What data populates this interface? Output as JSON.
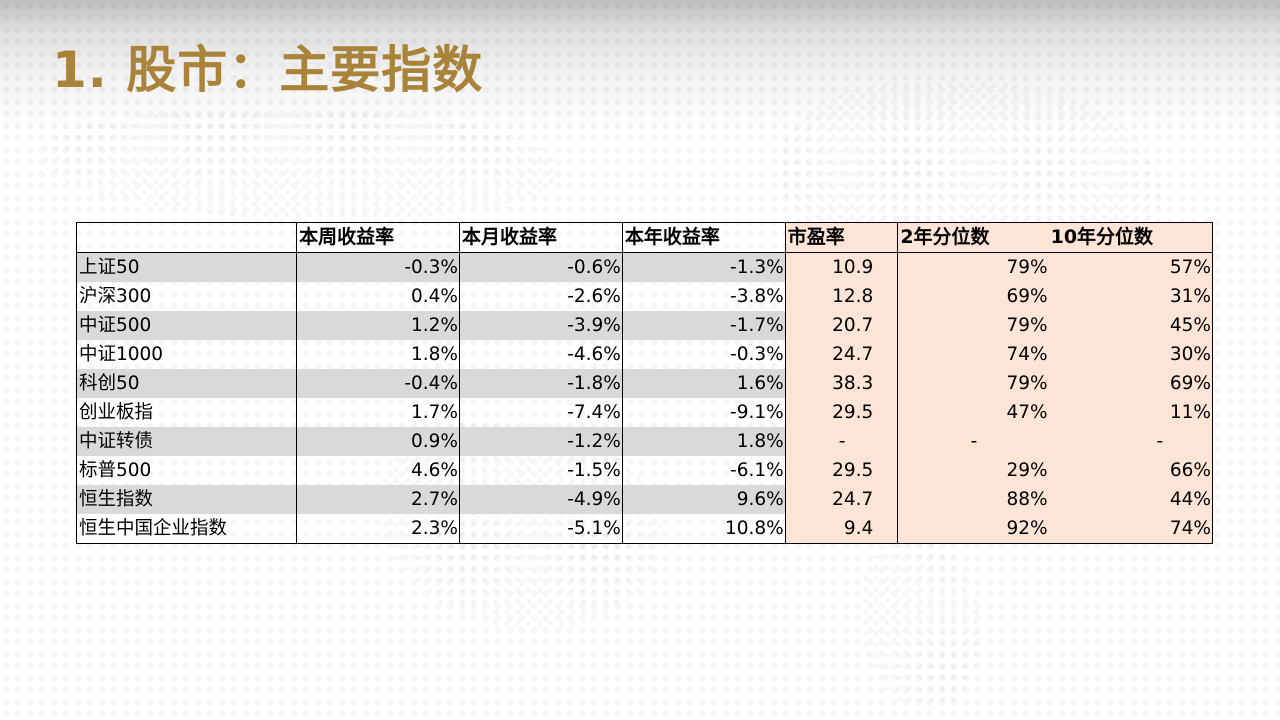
{
  "title": "1. 股市：主要指数",
  "table": {
    "headers": [
      "",
      "本周收益率",
      "本月收益率",
      "本年收益率",
      "市盈率",
      "2年分位数",
      "10年分位数"
    ],
    "rows": [
      {
        "name": "上证50",
        "week": "-0.3%",
        "month": "-0.6%",
        "ytd": "-1.3%",
        "pe": "10.9",
        "p2y": "79%",
        "p10y": "57%"
      },
      {
        "name": "沪深300",
        "week": "0.4%",
        "month": "-2.6%",
        "ytd": "-3.8%",
        "pe": "12.8",
        "p2y": "69%",
        "p10y": "31%"
      },
      {
        "name": "中证500",
        "week": "1.2%",
        "month": "-3.9%",
        "ytd": "-1.7%",
        "pe": "20.7",
        "p2y": "79%",
        "p10y": "45%"
      },
      {
        "name": "中证1000",
        "week": "1.8%",
        "month": "-4.6%",
        "ytd": "-0.3%",
        "pe": "24.7",
        "p2y": "74%",
        "p10y": "30%"
      },
      {
        "name": "科创50",
        "week": "-0.4%",
        "month": "-1.8%",
        "ytd": "1.6%",
        "pe": "38.3",
        "p2y": "79%",
        "p10y": "69%"
      },
      {
        "name": "创业板指",
        "week": "1.7%",
        "month": "-7.4%",
        "ytd": "-9.1%",
        "pe": "29.5",
        "p2y": "47%",
        "p10y": "11%"
      },
      {
        "name": "中证转债",
        "week": "0.9%",
        "month": "-1.2%",
        "ytd": "1.8%",
        "pe": "-",
        "p2y": "-",
        "p10y": "-"
      },
      {
        "name": "标普500",
        "week": "4.6%",
        "month": "-1.5%",
        "ytd": "-6.1%",
        "pe": "29.5",
        "p2y": "29%",
        "p10y": "66%"
      },
      {
        "name": "恒生指数",
        "week": "2.7%",
        "month": "-4.9%",
        "ytd": "9.6%",
        "pe": "24.7",
        "p2y": "88%",
        "p10y": "44%"
      },
      {
        "name": "恒生中国企业指数",
        "week": "2.3%",
        "month": "-5.1%",
        "ytd": "10.8%",
        "pe": "9.4",
        "p2y": "92%",
        "p10y": "74%"
      }
    ]
  },
  "colors": {
    "title": "#a9833a",
    "shade": "#d9d9d9",
    "valuation_bg": "#fce4d6"
  }
}
